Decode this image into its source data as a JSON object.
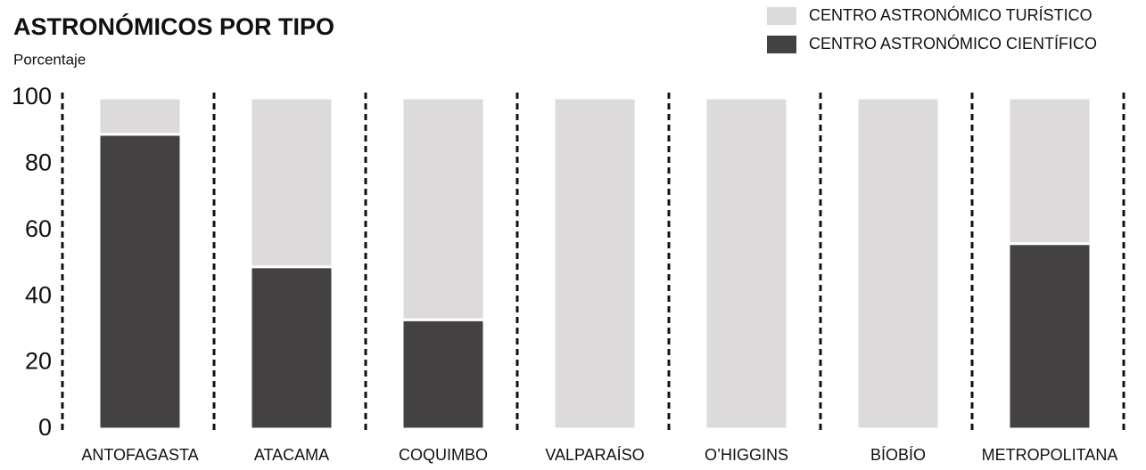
{
  "chart_data": {
    "type": "stacked_bar",
    "title": "ASTRONÓMICOS POR TIPO",
    "subtitle": "Porcentaje",
    "categories": [
      "ANTOFAGASTA",
      "ATACAMA",
      "COQUIMBO",
      "VALPARAÍSO",
      "O’HIGGINS",
      "BÍOBÍO",
      "METROPOLITANA"
    ],
    "series": [
      {
        "name": "CENTRO ASTRONÓMICO CIENTÍFICO",
        "color": "#444142",
        "values": [
          89,
          49,
          33,
          0,
          0,
          0,
          56
        ]
      },
      {
        "name": "CENTRO ASTRONÓMICO TURÍSTICO",
        "color": "#dcdadb",
        "values": [
          11,
          51,
          67,
          100,
          100,
          100,
          44
        ]
      }
    ],
    "ylim": [
      0,
      100
    ],
    "yticks": [
      0,
      20,
      40,
      60,
      80,
      100
    ],
    "grid": false,
    "legend": "top-right"
  }
}
